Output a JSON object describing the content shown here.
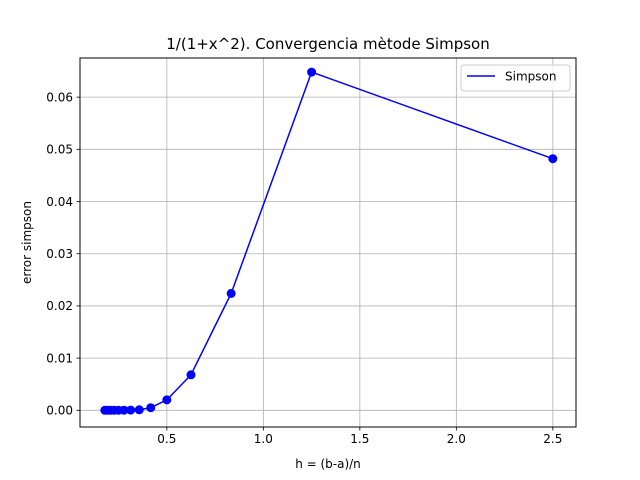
{
  "chart_data": {
    "type": "line",
    "title": "1/(1+x^2). Convergencia mètode Simpson",
    "xlabel": "h = (b-a)/n",
    "ylabel": "error simpson",
    "xlim": [
      0.05,
      2.62
    ],
    "ylim": [
      -0.0032,
      0.0675
    ],
    "xticks": [
      0.5,
      1.0,
      1.5,
      2.0,
      2.5
    ],
    "xtick_labels": [
      "0.5",
      "1.0",
      "1.5",
      "2.0",
      "2.5"
    ],
    "yticks": [
      0.0,
      0.01,
      0.02,
      0.03,
      0.04,
      0.05,
      0.06
    ],
    "ytick_labels": [
      "0.00",
      "0.01",
      "0.02",
      "0.03",
      "0.04",
      "0.05",
      "0.06"
    ],
    "grid": true,
    "legend": "top-right",
    "series": [
      {
        "name": "Simpson",
        "color": "#0000ff",
        "marker": "circle",
        "x": [
          2.5,
          1.25,
          0.8333,
          0.625,
          0.5,
          0.4167,
          0.3571,
          0.3125,
          0.2778,
          0.25,
          0.2273,
          0.2083,
          0.1923,
          0.1786
        ],
        "y": [
          0.0482,
          0.0648,
          0.0224,
          0.0068,
          0.002,
          0.0005,
          0.0001,
          4e-05,
          2e-05,
          1e-05,
          0.0,
          0.0,
          0.0,
          0.0
        ]
      }
    ]
  }
}
